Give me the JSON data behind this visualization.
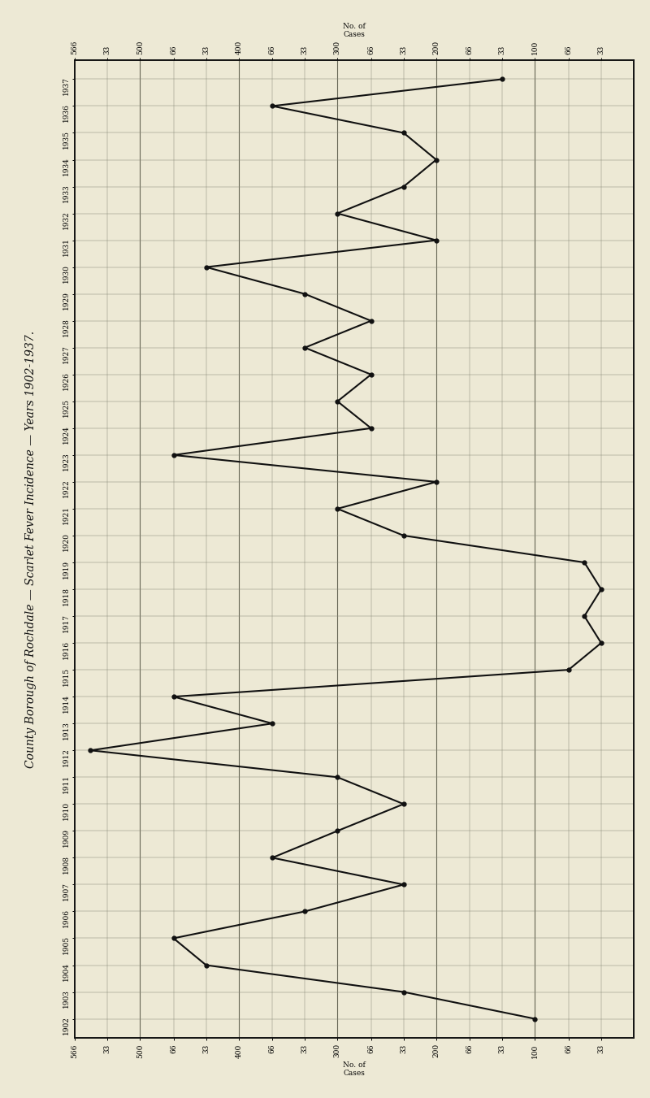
{
  "title": "County Borough of Rochdale — Scarlet Fever Incidence — Years 1902-1937.",
  "bg_color": "#ede9d5",
  "line_color": "#111111",
  "grid_color": "#888877",
  "years": [
    1902,
    1903,
    1904,
    1905,
    1906,
    1907,
    1908,
    1909,
    1910,
    1911,
    1912,
    1913,
    1914,
    1915,
    1916,
    1917,
    1918,
    1919,
    1920,
    1921,
    1922,
    1923,
    1924,
    1925,
    1926,
    1927,
    1928,
    1929,
    1930,
    1931,
    1932,
    1933,
    1934,
    1935,
    1936,
    1937
  ],
  "cases": [
    100,
    233,
    433,
    466,
    333,
    233,
    366,
    300,
    233,
    300,
    550,
    366,
    466,
    66,
    33,
    50,
    33,
    50,
    233,
    300,
    200,
    466,
    266,
    300,
    266,
    333,
    266,
    333,
    433,
    200,
    300,
    233,
    200,
    233,
    366,
    133
  ],
  "x_all_tick_positions": [
    566,
    533,
    500,
    466,
    433,
    400,
    366,
    333,
    300,
    266,
    233,
    200,
    166,
    133,
    100,
    66,
    33
  ],
  "x_all_tick_labels": [
    "566",
    "33",
    "500",
    "66",
    "33",
    "400",
    "66",
    "33",
    "300",
    "66",
    "33",
    "200",
    "66",
    "33",
    "100",
    "66",
    "33"
  ],
  "x_major_ticks": [
    500,
    400,
    300,
    200,
    100
  ],
  "xmin": 566,
  "xmax": 0,
  "tick_fontsize": 6.5,
  "title_fontsize": 10,
  "marker_size": 3.5,
  "line_width": 1.5
}
